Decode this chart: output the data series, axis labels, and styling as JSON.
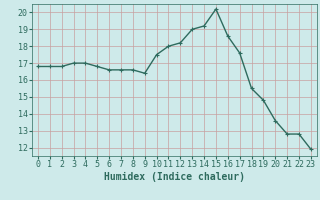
{
  "x": [
    0,
    1,
    2,
    3,
    4,
    5,
    6,
    7,
    8,
    9,
    10,
    11,
    12,
    13,
    14,
    15,
    16,
    17,
    18,
    19,
    20,
    21,
    22,
    23
  ],
  "y": [
    16.8,
    16.8,
    16.8,
    17.0,
    17.0,
    16.8,
    16.6,
    16.6,
    16.6,
    16.4,
    17.5,
    18.0,
    18.2,
    19.0,
    19.2,
    20.2,
    18.6,
    17.6,
    15.5,
    14.8,
    13.6,
    12.8,
    12.8,
    11.9
  ],
  "line_color": "#2e6b5e",
  "marker": "+",
  "marker_size": 3,
  "bg_color": "#ceeaea",
  "grid_color": "#c8a0a0",
  "xlabel": "Humidex (Indice chaleur)",
  "xlim": [
    -0.5,
    23.5
  ],
  "ylim": [
    11.5,
    20.5
  ],
  "yticks": [
    12,
    13,
    14,
    15,
    16,
    17,
    18,
    19,
    20
  ],
  "xticks": [
    0,
    1,
    2,
    3,
    4,
    5,
    6,
    7,
    8,
    9,
    10,
    11,
    12,
    13,
    14,
    15,
    16,
    17,
    18,
    19,
    20,
    21,
    22,
    23
  ],
  "xlabel_fontsize": 7,
  "tick_fontsize": 6,
  "line_width": 1.0
}
